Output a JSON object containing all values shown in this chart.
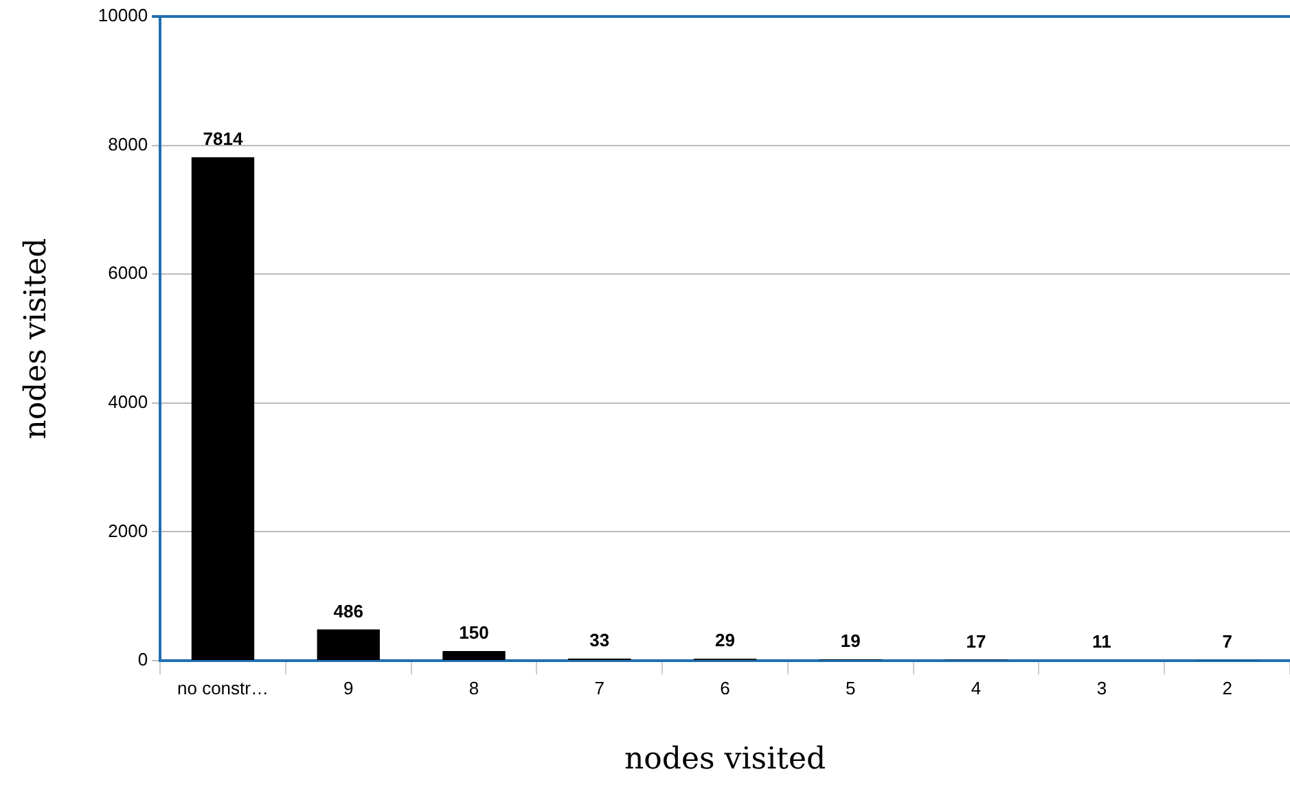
{
  "chart_data": {
    "type": "bar",
    "xlabel": "nodes visited",
    "ylabel": "nodes visited",
    "categories": [
      "no constr…",
      "9",
      "8",
      "7",
      "6",
      "5",
      "4",
      "3",
      "2"
    ],
    "values": [
      7814,
      486,
      150,
      33,
      29,
      19,
      17,
      11,
      7
    ],
    "color": "#000000",
    "ylim": [
      0,
      10000
    ],
    "yticks": [
      0,
      2000,
      4000,
      6000,
      8000,
      10000
    ],
    "grid": "y",
    "data_labels": true
  }
}
